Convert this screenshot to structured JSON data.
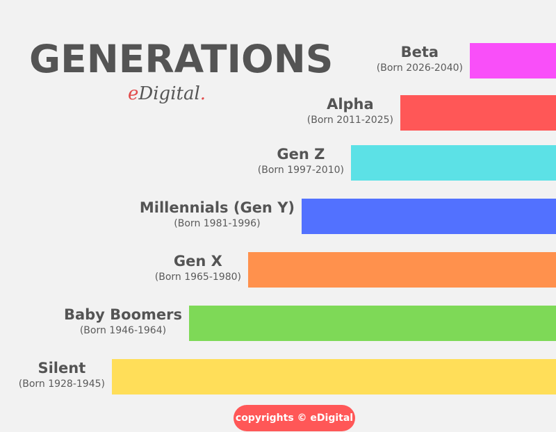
{
  "title": "GENERATIONS",
  "logo": {
    "e": "e",
    "rest": "Digital",
    "dot": "."
  },
  "generations": [
    {
      "name": "Beta",
      "born": "(Born 2026-2040)",
      "color": "#f94ff9"
    },
    {
      "name": "Alpha",
      "born": "(Born 2011-2025)",
      "color": "#ff5757"
    },
    {
      "name": "Gen Z",
      "born": "(Born 1997-2010)",
      "color": "#5ce1e6"
    },
    {
      "name": "Millennials (Gen Y)",
      "born": "(Born 1981-1996)",
      "color": "#5271ff"
    },
    {
      "name": "Gen X",
      "born": "(Born 1965-1980)",
      "color": "#ff914d"
    },
    {
      "name": "Baby Boomers",
      "born": "(Born 1946-1964)",
      "color": "#7ed957"
    },
    {
      "name": "Silent",
      "born": "(Born 1928-1945)",
      "color": "#ffde59"
    }
  ],
  "footer": {
    "copyright": "copyrights © eDigital"
  }
}
